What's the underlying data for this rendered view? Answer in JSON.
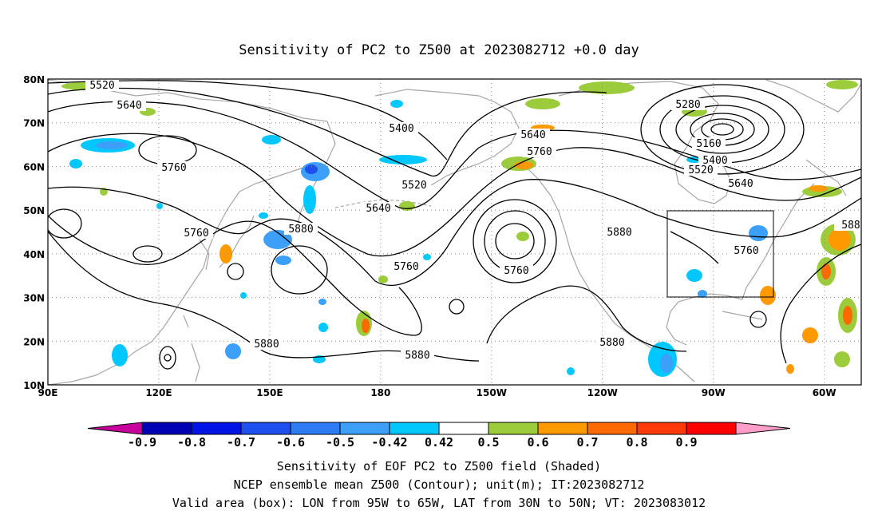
{
  "title": "Sensitivity of PC2 to Z500 at 2023082712 +0.0 day",
  "map": {
    "lat_labels": [
      "80N",
      "70N",
      "60N",
      "50N",
      "40N",
      "30N",
      "20N",
      "10N"
    ],
    "lon_labels": [
      "90E",
      "120E",
      "150E",
      "180",
      "150W",
      "120W",
      "90W",
      "60W"
    ],
    "contour_labels": [
      {
        "text": "5520"
      },
      {
        "text": "5640"
      },
      {
        "text": "5760"
      },
      {
        "text": "5760"
      },
      {
        "text": "5880"
      },
      {
        "text": "5880"
      },
      {
        "text": "5400"
      },
      {
        "text": "5520"
      },
      {
        "text": "5640"
      },
      {
        "text": "5760"
      },
      {
        "text": "5880"
      },
      {
        "text": "5640"
      },
      {
        "text": "5760"
      },
      {
        "text": "5760"
      },
      {
        "text": "5880"
      },
      {
        "text": "5880"
      },
      {
        "text": "5280"
      },
      {
        "text": "5160"
      },
      {
        "text": "5400"
      },
      {
        "text": "5520"
      },
      {
        "text": "5640"
      },
      {
        "text": "5760"
      },
      {
        "text": "588"
      }
    ],
    "valid_box": {
      "lon_from": "95W",
      "lon_to": "65W",
      "lat_from": "30N",
      "lat_to": "50N"
    }
  },
  "colorbar": {
    "labels": [
      "-0.9",
      "-0.8",
      "-0.7",
      "-0.6",
      "-0.5",
      "-0.42",
      "0.42",
      "0.5",
      "0.6",
      "0.7",
      "0.8",
      "0.9"
    ],
    "colors": [
      "#c8009b",
      "#0000b4",
      "#0014e6",
      "#1e50f0",
      "#2d7cf5",
      "#3ca0fa",
      "#00c8ff",
      "#ffffff",
      "#9ccc3c",
      "#ff9900",
      "#ff6a00",
      "#ff3a0a",
      "#ff0000",
      "#ff9ec8"
    ]
  },
  "captions": [
    "Sensitivity of EOF PC2 to Z500 field (Shaded)",
    "NCEP ensemble mean Z500 (Contour); unit(m); IT:2023082712",
    "Valid area (box): LON from 95W to 65W, LAT from 30N to 50N; VT: 2023083012"
  ],
  "colors": {
    "coast": "#a6a6a6",
    "contour": "#000000",
    "grid": "#888888",
    "pos_low": "#9ccc3c",
    "pos_mid": "#ff9900",
    "pos_high": "#ff3a0a",
    "neg_low": "#00c8ff",
    "neg_mid": "#3ca0fa",
    "neg_high": "#1e50f0"
  }
}
